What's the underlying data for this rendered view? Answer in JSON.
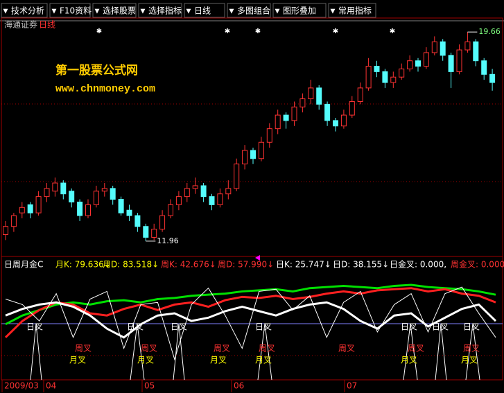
{
  "toolbar": {
    "items": [
      "技术分析",
      "F10资料",
      "选择股票",
      "选择指标",
      "日线",
      "多图组合",
      "图形叠加",
      "常用指标"
    ]
  },
  "stock": {
    "name": "海通证券",
    "period": "日线"
  },
  "watermark": {
    "site_name": "第一股票公式网",
    "url": "www.chnmoney.com"
  },
  "price_labels": {
    "high": "19.66",
    "low": "11.96"
  },
  "chart_data": {
    "type": "candlestick",
    "ylim": [
      11.6,
      20.2
    ],
    "candles": [
      [
        12.2,
        12.7,
        12.0,
        12.5
      ],
      [
        12.5,
        13.0,
        12.3,
        12.9
      ],
      [
        13.0,
        13.4,
        12.8,
        13.2
      ],
      [
        13.3,
        13.4,
        12.8,
        13.0
      ],
      [
        13.0,
        13.8,
        12.9,
        13.6
      ],
      [
        13.6,
        14.1,
        13.4,
        13.9
      ],
      [
        13.8,
        14.3,
        13.6,
        14.1
      ],
      [
        14.1,
        14.2,
        13.5,
        13.7
      ],
      [
        13.8,
        13.9,
        13.2,
        13.4
      ],
      [
        13.4,
        13.5,
        12.7,
        12.9
      ],
      [
        12.9,
        13.5,
        12.8,
        13.3
      ],
      [
        13.3,
        14.0,
        13.2,
        13.8
      ],
      [
        13.8,
        14.1,
        13.6,
        13.9
      ],
      [
        13.9,
        14.0,
        13.3,
        13.5
      ],
      [
        13.5,
        13.6,
        12.9,
        13.0
      ],
      [
        13.1,
        13.3,
        12.7,
        12.9
      ],
      [
        12.9,
        13.0,
        12.3,
        12.5
      ],
      [
        12.5,
        12.6,
        11.96,
        12.1
      ],
      [
        12.1,
        12.6,
        12.0,
        12.4
      ],
      [
        12.4,
        13.1,
        12.3,
        12.9
      ],
      [
        12.9,
        13.5,
        12.8,
        13.3
      ],
      [
        13.3,
        13.8,
        13.1,
        13.6
      ],
      [
        13.6,
        14.1,
        13.4,
        13.9
      ],
      [
        13.9,
        14.3,
        13.7,
        14.0
      ],
      [
        14.0,
        14.1,
        13.4,
        13.6
      ],
      [
        13.6,
        13.7,
        13.1,
        13.3
      ],
      [
        13.3,
        13.9,
        13.2,
        13.7
      ],
      [
        13.7,
        14.2,
        13.5,
        13.9
      ],
      [
        13.9,
        15.0,
        13.8,
        14.8
      ],
      [
        14.8,
        15.5,
        14.6,
        15.3
      ],
      [
        15.3,
        15.4,
        14.8,
        15.0
      ],
      [
        15.0,
        15.8,
        14.9,
        15.6
      ],
      [
        15.6,
        16.3,
        15.4,
        16.1
      ],
      [
        16.1,
        16.8,
        15.9,
        16.6
      ],
      [
        16.6,
        16.7,
        16.1,
        16.4
      ],
      [
        16.4,
        17.1,
        16.2,
        16.9
      ],
      [
        16.9,
        17.4,
        16.7,
        17.2
      ],
      [
        17.2,
        17.9,
        17.0,
        17.6
      ],
      [
        17.6,
        17.7,
        16.8,
        17.0
      ],
      [
        17.0,
        17.1,
        16.2,
        16.4
      ],
      [
        16.4,
        16.5,
        16.0,
        16.2
      ],
      [
        16.2,
        16.8,
        16.1,
        16.6
      ],
      [
        16.6,
        17.3,
        16.5,
        17.1
      ],
      [
        17.1,
        17.8,
        17.0,
        17.6
      ],
      [
        17.6,
        18.7,
        17.5,
        18.4
      ],
      [
        18.4,
        18.6,
        18.0,
        18.2
      ],
      [
        18.2,
        18.3,
        17.6,
        17.8
      ],
      [
        17.8,
        18.2,
        17.6,
        18.0
      ],
      [
        18.0,
        18.5,
        17.9,
        18.3
      ],
      [
        18.3,
        18.8,
        18.2,
        18.6
      ],
      [
        18.6,
        18.7,
        18.2,
        18.4
      ],
      [
        18.4,
        19.1,
        18.3,
        18.9
      ],
      [
        18.9,
        19.5,
        18.8,
        19.3
      ],
      [
        19.3,
        19.4,
        18.6,
        18.8
      ],
      [
        18.8,
        18.9,
        17.6,
        18.2
      ],
      [
        18.2,
        19.2,
        18.1,
        19.0
      ],
      [
        19.0,
        19.66,
        18.9,
        19.3
      ],
      [
        19.3,
        19.4,
        18.4,
        18.6
      ],
      [
        18.6,
        18.7,
        17.9,
        18.1
      ],
      [
        18.1,
        18.3,
        17.5,
        17.8
      ]
    ],
    "up_color": "#ff3232",
    "down_color": "#54fcfc"
  },
  "indicator": {
    "type": "line",
    "name": "日周月金C",
    "readouts": [
      {
        "text": "月K: 79.636↓",
        "color": "#ffff00"
      },
      {
        "text": "月D: 83.518↓",
        "color": "#ffff00"
      },
      {
        "text": "周K: 42.676↓",
        "color": "#ff3232"
      },
      {
        "text": "周D: 57.990↓",
        "color": "#ff3232"
      },
      {
        "text": "日K: 25.747↓",
        "color": "#ffffff"
      },
      {
        "text": "日D: 38.155↓",
        "color": "#ffffff"
      },
      {
        "text": "日金叉: 0.000,",
        "color": "#ffffff"
      },
      {
        "text": "周金叉: 0.000",
        "color": "#ff3232"
      }
    ],
    "ylim": [
      0,
      100
    ],
    "series": [
      {
        "color": "#00e000",
        "width": 3,
        "values": [
          52,
          60,
          65,
          70,
          72,
          70,
          73,
          74,
          72,
          75,
          76,
          78,
          79,
          80,
          82,
          83,
          84,
          82,
          85,
          86,
          87,
          86,
          85,
          87,
          88,
          86,
          85,
          84,
          82,
          79
        ]
      },
      {
        "color": "#ff2020",
        "width": 3,
        "values": [
          40,
          55,
          65,
          72,
          70,
          62,
          60,
          66,
          70,
          65,
          70,
          72,
          68,
          74,
          77,
          76,
          78,
          75,
          77,
          80,
          82,
          80,
          83,
          84,
          85,
          82,
          84,
          80,
          78,
          72
        ]
      },
      {
        "color": "#ffffff",
        "width": 3,
        "values": [
          60,
          66,
          70,
          72,
          68,
          60,
          48,
          40,
          52,
          60,
          62,
          55,
          58,
          64,
          68,
          64,
          60,
          66,
          70,
          72,
          66,
          55,
          48,
          60,
          62,
          50,
          58,
          66,
          70,
          55
        ]
      },
      {
        "color": "#ffffff",
        "width": 1,
        "values": [
          75,
          70,
          55,
          80,
          40,
          75,
          82,
          30,
          70,
          72,
          20,
          70,
          85,
          60,
          30,
          82,
          84,
          65,
          78,
          40,
          72,
          82,
          45,
          70,
          80,
          45,
          80,
          86,
          62,
          40
        ]
      }
    ],
    "cross_labels": {
      "day": "日叉",
      "week": "周叉",
      "month": "月叉"
    }
  },
  "time_axis": {
    "labels": [
      "2009/03",
      "04",
      "05",
      "06",
      "07"
    ]
  }
}
